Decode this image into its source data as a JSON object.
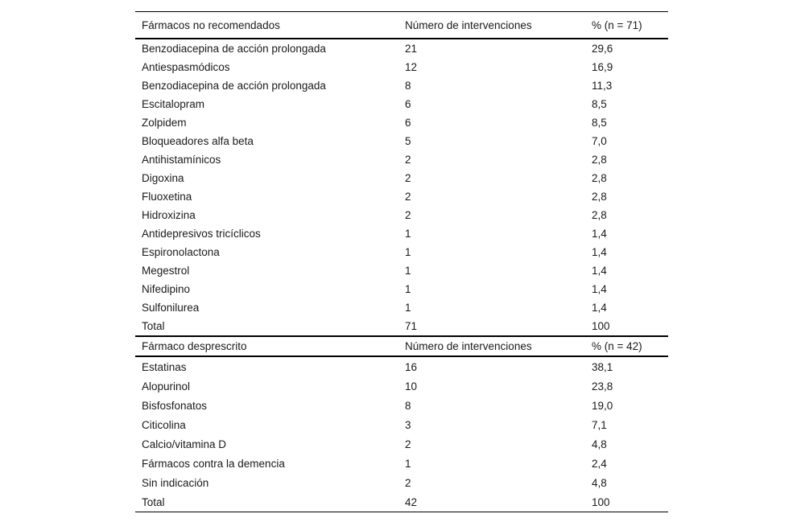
{
  "document": {
    "kind": "journal-article-table",
    "language": "es"
  },
  "tables": [
    {
      "headers": [
        "Fármacos no recomendados",
        "Número de intervenciones",
        "% (n = 71)"
      ],
      "rows": [
        [
          "Benzodiacepina de acción prolongada",
          "21",
          "29,6"
        ],
        [
          "Antiespasmódicos",
          "12",
          "16,9"
        ],
        [
          "Benzodiacepina de acción prolongada",
          "8",
          "11,3"
        ],
        [
          "Escitalopram",
          "6",
          "8,5"
        ],
        [
          "Zolpidem",
          "6",
          "8,5"
        ],
        [
          "Bloqueadores alfa beta",
          "5",
          "7,0"
        ],
        [
          "Antihistamínicos",
          "2",
          "2,8"
        ],
        [
          "Digoxina",
          "2",
          "2,8"
        ],
        [
          "Fluoxetina",
          "2",
          "2,8"
        ],
        [
          "Hidroxizina",
          "2",
          "2,8"
        ],
        [
          "Antidepresivos tricíclicos",
          "1",
          "1,4"
        ],
        [
          "Espironolactona",
          "1",
          "1,4"
        ],
        [
          "Megestrol",
          "1",
          "1,4"
        ],
        [
          "Nifedipino",
          "1",
          "1,4"
        ],
        [
          "Sulfonilurea",
          "1",
          "1,4"
        ],
        [
          "Total",
          "71",
          "100"
        ]
      ]
    },
    {
      "headers": [
        "Fármaco desprescrito",
        "Número de intervenciones",
        "% (n = 42)"
      ],
      "rows": [
        [
          "Estatinas",
          "16",
          "38,1"
        ],
        [
          "Alopurinol",
          "10",
          "23,8"
        ],
        [
          "Bisfosfonatos",
          "8",
          "19,0"
        ],
        [
          "Citicolina",
          "3",
          "7,1"
        ],
        [
          "Calcio/vitamina D",
          "2",
          "4,8"
        ],
        [
          "Fármacos contra la demencia",
          "1",
          "2,4"
        ],
        [
          "Sin indicación",
          "2",
          "4,8"
        ],
        [
          "Total",
          "42",
          "100"
        ]
      ]
    }
  ],
  "colors": {
    "text": "#1a1a1a",
    "rule": "#000000",
    "background": "#ffffff"
  }
}
